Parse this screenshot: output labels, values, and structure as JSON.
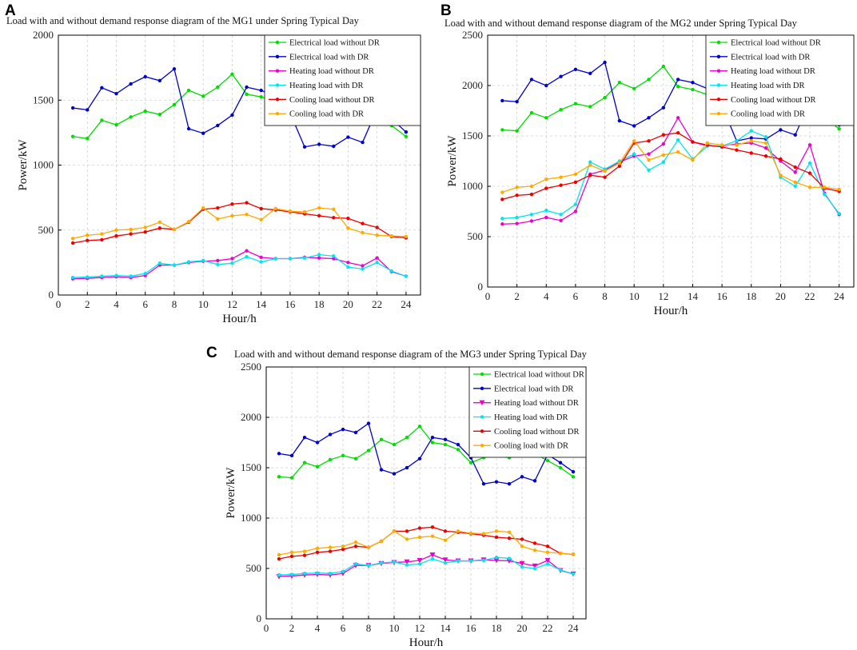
{
  "colors": {
    "electrical_without": "#00dd00",
    "electrical_with": "#0000cc",
    "heating_without": "#ee00cc",
    "heating_with": "#00e5ee",
    "cooling_without": "#ee0000",
    "cooling_with": "#ffaa00"
  },
  "chart_data": [
    {
      "panel": "A",
      "type": "line",
      "title": "Load with and without demand response diagram of the MG1 under Spring Typical Day",
      "xlabel": "Hour/h",
      "ylabel": "Power/kW",
      "xlim": [
        0,
        25
      ],
      "ylim": [
        0,
        2000
      ],
      "xticks": [
        0,
        2,
        4,
        6,
        8,
        10,
        12,
        14,
        16,
        18,
        20,
        22,
        24
      ],
      "yticks": [
        0,
        500,
        1000,
        1500,
        2000
      ],
      "legend": "top-right",
      "x": [
        1,
        2,
        3,
        4,
        5,
        6,
        7,
        8,
        9,
        10,
        11,
        12,
        13,
        14,
        15,
        16,
        17,
        18,
        19,
        20,
        21,
        22,
        23,
        24
      ],
      "series": [
        {
          "name": "Electrical load without DR",
          "color_key": "electrical_without",
          "marker": "dot",
          "values": [
            1220,
            1205,
            1345,
            1310,
            1370,
            1415,
            1390,
            1465,
            1575,
            1530,
            1600,
            1700,
            1545,
            1525,
            1490,
            1360,
            1400,
            1420,
            1405,
            1495,
            1440,
            1380,
            1305,
            1220
          ]
        },
        {
          "name": "Electrical load with DR",
          "color_key": "electrical_with",
          "marker": "dot",
          "values": [
            1440,
            1425,
            1595,
            1550,
            1625,
            1680,
            1650,
            1740,
            1280,
            1245,
            1305,
            1385,
            1600,
            1575,
            1530,
            1400,
            1140,
            1160,
            1145,
            1215,
            1175,
            1430,
            1355,
            1255
          ]
        },
        {
          "name": "Heating load without DR",
          "color_key": "heating_without",
          "marker": "dot",
          "values": [
            125,
            128,
            135,
            140,
            135,
            150,
            230,
            230,
            250,
            260,
            265,
            280,
            340,
            290,
            280,
            280,
            290,
            285,
            280,
            250,
            225,
            285,
            180,
            145
          ]
        },
        {
          "name": "Heating load with DR",
          "color_key": "heating_with",
          "marker": "dot",
          "values": [
            135,
            138,
            145,
            150,
            145,
            165,
            245,
            230,
            255,
            265,
            235,
            245,
            295,
            255,
            280,
            280,
            285,
            310,
            300,
            215,
            200,
            250,
            185,
            145
          ]
        },
        {
          "name": "Cooling load without DR",
          "color_key": "cooling_without",
          "marker": "dot",
          "values": [
            400,
            420,
            425,
            455,
            470,
            485,
            515,
            505,
            560,
            660,
            670,
            700,
            710,
            665,
            655,
            640,
            625,
            610,
            595,
            590,
            550,
            520,
            450,
            440
          ]
        },
        {
          "name": "Cooling load with DR",
          "color_key": "cooling_with",
          "marker": "dot",
          "values": [
            435,
            460,
            470,
            500,
            505,
            520,
            560,
            505,
            565,
            670,
            585,
            610,
            620,
            580,
            665,
            645,
            640,
            670,
            660,
            515,
            480,
            460,
            455,
            450
          ]
        }
      ]
    },
    {
      "panel": "B",
      "type": "line",
      "title": "Load with and without demand response diagram of the MG2 under Spring Typical Day",
      "xlabel": "Hour/h",
      "ylabel": "Power/kW",
      "xlim": [
        0,
        25
      ],
      "ylim": [
        0,
        2500
      ],
      "xticks": [
        0,
        2,
        4,
        6,
        8,
        10,
        12,
        14,
        16,
        18,
        20,
        22,
        24
      ],
      "yticks": [
        0,
        500,
        1000,
        1500,
        2000,
        2500
      ],
      "legend": "top-right",
      "x": [
        1,
        2,
        3,
        4,
        5,
        6,
        7,
        8,
        9,
        10,
        11,
        12,
        13,
        14,
        15,
        16,
        17,
        18,
        19,
        20,
        21,
        22,
        23,
        24
      ],
      "series": [
        {
          "name": "Electrical load without DR",
          "color_key": "electrical_without",
          "marker": "dot",
          "values": [
            1560,
            1550,
            1730,
            1680,
            1760,
            1820,
            1790,
            1880,
            2030,
            1970,
            2060,
            2190,
            1990,
            1960,
            1910,
            1760,
            1800,
            1830,
            1810,
            1920,
            1860,
            1780,
            1680,
            1570
          ]
        },
        {
          "name": "Electrical load with DR",
          "color_key": "electrical_with",
          "marker": "dot",
          "values": [
            1850,
            1840,
            2060,
            2000,
            2090,
            2160,
            2120,
            2230,
            1650,
            1600,
            1680,
            1780,
            2060,
            2030,
            1970,
            1800,
            1450,
            1480,
            1470,
            1560,
            1510,
            1840,
            1740,
            1610
          ]
        },
        {
          "name": "Heating load without DR",
          "color_key": "heating_without",
          "marker": "dot",
          "values": [
            625,
            630,
            655,
            690,
            660,
            750,
            1120,
            1160,
            1240,
            1300,
            1320,
            1420,
            1680,
            1440,
            1400,
            1400,
            1420,
            1430,
            1380,
            1250,
            1140,
            1410,
            930,
            720
          ]
        },
        {
          "name": "Heating load with DR",
          "color_key": "heating_with",
          "marker": "dot",
          "values": [
            680,
            690,
            720,
            760,
            720,
            820,
            1240,
            1170,
            1250,
            1320,
            1160,
            1240,
            1460,
            1270,
            1400,
            1400,
            1450,
            1550,
            1490,
            1090,
            1000,
            1230,
            920,
            730
          ]
        },
        {
          "name": "Cooling load without DR",
          "color_key": "cooling_without",
          "marker": "dot",
          "values": [
            870,
            910,
            920,
            980,
            1010,
            1040,
            1110,
            1090,
            1200,
            1430,
            1450,
            1510,
            1530,
            1440,
            1410,
            1390,
            1360,
            1330,
            1300,
            1270,
            1190,
            1130,
            980,
            950
          ]
        },
        {
          "name": "Cooling load with DR",
          "color_key": "cooling_with",
          "marker": "dot",
          "values": [
            940,
            990,
            1000,
            1070,
            1090,
            1120,
            1210,
            1150,
            1230,
            1450,
            1260,
            1310,
            1340,
            1260,
            1430,
            1410,
            1410,
            1450,
            1430,
            1110,
            1040,
            990,
            990,
            970
          ]
        }
      ]
    },
    {
      "panel": "C",
      "type": "line",
      "title": "Load with and without demand response diagram of the MG3 under Spring Typical Day",
      "xlabel": "Hour/h",
      "ylabel": "Power/kW",
      "xlim": [
        0,
        25
      ],
      "ylim": [
        0,
        2500
      ],
      "xticks": [
        0,
        2,
        4,
        6,
        8,
        10,
        12,
        14,
        16,
        18,
        20,
        22,
        24
      ],
      "yticks": [
        0,
        500,
        1000,
        1500,
        2000,
        2500
      ],
      "legend": "top-right",
      "x": [
        1,
        2,
        3,
        4,
        5,
        6,
        7,
        8,
        9,
        10,
        11,
        12,
        13,
        14,
        15,
        16,
        17,
        18,
        19,
        20,
        21,
        22,
        23,
        24
      ],
      "series": [
        {
          "name": "Electrical load without DR",
          "color_key": "electrical_without",
          "marker": "dot",
          "values": [
            1410,
            1400,
            1550,
            1510,
            1580,
            1620,
            1590,
            1670,
            1780,
            1730,
            1800,
            1910,
            1750,
            1730,
            1680,
            1550,
            1600,
            1620,
            1600,
            1690,
            1640,
            1570,
            1500,
            1410
          ]
        },
        {
          "name": "Electrical load with DR",
          "color_key": "electrical_with",
          "marker": "dot",
          "values": [
            1640,
            1620,
            1800,
            1750,
            1830,
            1880,
            1850,
            1940,
            1480,
            1440,
            1500,
            1590,
            1800,
            1780,
            1730,
            1600,
            1340,
            1360,
            1340,
            1410,
            1370,
            1630,
            1550,
            1460
          ]
        },
        {
          "name": "Heating load without DR",
          "color_key": "heating_without",
          "marker": "triangle",
          "values": [
            420,
            425,
            435,
            440,
            435,
            450,
            530,
            530,
            550,
            560,
            565,
            580,
            635,
            585,
            575,
            575,
            585,
            580,
            575,
            550,
            525,
            580,
            480,
            445
          ]
        },
        {
          "name": "Heating load with DR",
          "color_key": "heating_with",
          "marker": "dot",
          "values": [
            435,
            440,
            450,
            455,
            450,
            470,
            545,
            530,
            555,
            565,
            535,
            545,
            595,
            555,
            575,
            575,
            580,
            610,
            600,
            515,
            500,
            545,
            485,
            445
          ]
        },
        {
          "name": "Cooling load without DR",
          "color_key": "cooling_without",
          "marker": "dot",
          "values": [
            595,
            620,
            630,
            660,
            670,
            690,
            720,
            710,
            770,
            870,
            870,
            900,
            910,
            870,
            860,
            845,
            830,
            810,
            800,
            790,
            750,
            720,
            650,
            640
          ]
        },
        {
          "name": "Cooling load with DR",
          "color_key": "cooling_with",
          "marker": "dot",
          "values": [
            635,
            660,
            670,
            700,
            710,
            720,
            760,
            710,
            770,
            870,
            790,
            810,
            820,
            780,
            870,
            850,
            845,
            870,
            860,
            720,
            680,
            660,
            650,
            640
          ]
        }
      ]
    }
  ]
}
